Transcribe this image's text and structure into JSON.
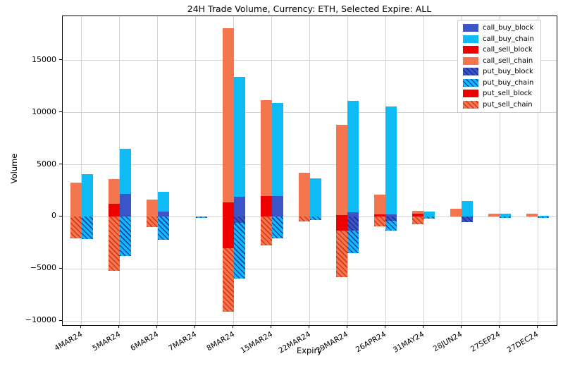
{
  "chart_data": {
    "type": "bar",
    "stacked": true,
    "grid": true,
    "title": "24H Trade Volume, Currency: ETH, Selected Expire: ALL",
    "xlabel": "Expiry",
    "ylabel": "Volume",
    "legend_position": "top-right",
    "ylim": [
      -10400,
      19250
    ],
    "yticks": [
      -10000,
      -5000,
      0,
      5000,
      10000,
      15000
    ],
    "categories": [
      "4MAR24",
      "5MAR24",
      "6MAR24",
      "7MAR24",
      "8MAR24",
      "15MAR24",
      "22MAR24",
      "29MAR24",
      "26APR24",
      "31MAY24",
      "28JUN24",
      "27SEP24",
      "27DEC24"
    ],
    "colors": {
      "block_blue": "#3B54C8",
      "chain_blue": "#0FBBF5",
      "block_red": "#EE0000",
      "chain_coral": "#F4764E",
      "hatch_dark_blue": "#1F2D8A",
      "hatch_mid_blue": "#1E41B0",
      "hatch_dark_red": "#D63615"
    },
    "series": [
      {
        "name": "call_buy_block",
        "side": "buy",
        "sign": "up",
        "color": "#3B54C8",
        "hatch": false,
        "hatch_color": null,
        "values": [
          0,
          2200,
          500,
          0,
          1900,
          2000,
          0,
          450,
          200,
          0,
          0,
          0,
          0
        ]
      },
      {
        "name": "call_buy_chain",
        "side": "buy",
        "sign": "up",
        "color": "#0FBBF5",
        "hatch": false,
        "hatch_color": null,
        "values": [
          4100,
          4300,
          1900,
          0,
          11500,
          8900,
          3650,
          10650,
          10400,
          500,
          1500,
          280,
          120
        ]
      },
      {
        "name": "call_sell_block",
        "side": "sell",
        "sign": "up",
        "color": "#EE0000",
        "hatch": false,
        "hatch_color": null,
        "values": [
          0,
          1250,
          0,
          0,
          1350,
          2000,
          0,
          150,
          200,
          270,
          0,
          0,
          0
        ]
      },
      {
        "name": "call_sell_chain",
        "side": "sell",
        "sign": "up",
        "color": "#F4764E",
        "hatch": false,
        "hatch_color": null,
        "values": [
          3250,
          2350,
          1650,
          0,
          16750,
          9200,
          4200,
          8650,
          1900,
          280,
          800,
          300,
          300
        ]
      },
      {
        "name": "put_buy_block",
        "side": "buy",
        "sign": "down",
        "color": "#3B54C8",
        "hatch": true,
        "hatch_color": "#1F2D8A",
        "values": [
          0,
          0,
          0,
          0,
          -600,
          0,
          0,
          -1330,
          -400,
          0,
          -550,
          0,
          0
        ]
      },
      {
        "name": "put_buy_chain",
        "side": "buy",
        "sign": "down",
        "color": "#0FBBF5",
        "hatch": true,
        "hatch_color": "#1E41B0",
        "values": [
          -2150,
          -3750,
          -2200,
          -100,
          -5300,
          -2100,
          -300,
          -2170,
          -900,
          -150,
          0,
          -100,
          -120
        ]
      },
      {
        "name": "put_sell_block",
        "side": "sell",
        "sign": "down",
        "color": "#EE0000",
        "hatch": false,
        "hatch_color": null,
        "values": [
          0,
          0,
          0,
          0,
          -3050,
          0,
          0,
          -1330,
          0,
          0,
          0,
          0,
          0
        ]
      },
      {
        "name": "put_sell_chain",
        "side": "sell",
        "sign": "down",
        "color": "#F4764E",
        "hatch": true,
        "hatch_color": "#D63615",
        "values": [
          -2100,
          -5200,
          -1000,
          0,
          -6050,
          -2750,
          -420,
          -4500,
          -900,
          -700,
          0,
          0,
          0
        ]
      }
    ],
    "legend_items": [
      "call_buy_block",
      "call_buy_chain",
      "call_sell_block",
      "call_sell_chain",
      "put_buy_block",
      "put_buy_chain",
      "put_sell_block",
      "put_sell_chain"
    ]
  },
  "layout_text": {
    "title": "24H Trade Volume, Currency: ETH, Selected Expire: ALL",
    "xlabel": "Expiry",
    "ylabel": "Volume"
  }
}
